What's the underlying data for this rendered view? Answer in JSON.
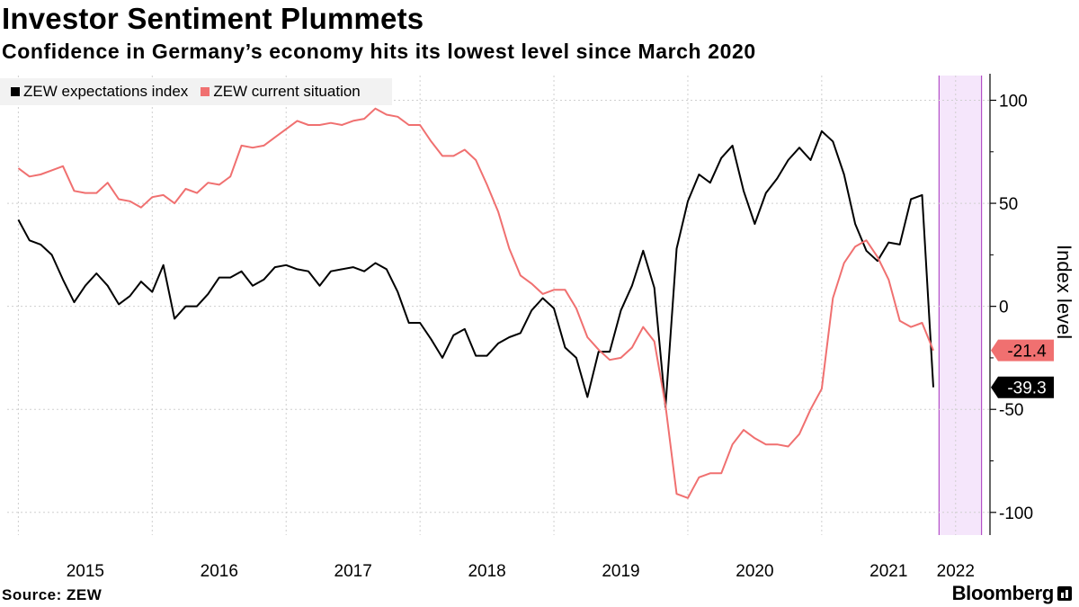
{
  "header": {
    "title": "Investor Sentiment Plummets",
    "subtitle": "Confidence in Germany’s economy hits its lowest level since March 2020"
  },
  "legend": [
    {
      "label": "ZEW expectations index",
      "color": "#000000"
    },
    {
      "label": "ZEW current situation",
      "color": "#f07070"
    }
  ],
  "footer": {
    "source": "Source: ZEW",
    "brand": "Bloomberg"
  },
  "chart_data": {
    "type": "line",
    "ylabel": "Index level",
    "ylim": [
      -111,
      112
    ],
    "yticks": [
      100,
      50,
      0,
      -50,
      -100
    ],
    "xlim": [
      "2014-12",
      "2022-04"
    ],
    "xticks": [
      {
        "label": "2015",
        "date": "2015-07"
      },
      {
        "label": "2016",
        "date": "2016-07"
      },
      {
        "label": "2017",
        "date": "2017-07"
      },
      {
        "label": "2018",
        "date": "2018-07"
      },
      {
        "label": "2019",
        "date": "2019-07"
      },
      {
        "label": "2020",
        "date": "2020-07"
      },
      {
        "label": "2021",
        "date": "2021-07"
      },
      {
        "label": "2022",
        "date": "2022-01"
      }
    ],
    "highlight": {
      "start": "2021-12",
      "end": "2022-03",
      "color": "#f5e6fb",
      "edge": "#b44fc8"
    },
    "grid": true,
    "legend_position": "top-left",
    "end_labels": [
      {
        "text": "-21.4",
        "series": 1,
        "value": -21.4
      },
      {
        "text": "-39.3",
        "series": 0,
        "value": -39.3
      }
    ],
    "series": [
      {
        "name": "ZEW expectations index",
        "color": "#000000",
        "start": "2015-01",
        "values": [
          42,
          32,
          30,
          25,
          13,
          2,
          10,
          16,
          10,
          1,
          5,
          12,
          7,
          20,
          -6,
          0,
          0,
          6,
          14,
          14,
          17,
          10,
          13,
          19,
          20,
          18,
          17,
          10,
          17,
          18,
          19,
          17,
          21,
          18,
          7,
          -8,
          -8,
          -16,
          -25,
          -14,
          -11,
          -24,
          -24,
          -18,
          -15,
          -13,
          -2,
          4,
          -1,
          -20,
          -25,
          -44,
          -22,
          -22,
          -2,
          10,
          27,
          9,
          -49,
          28,
          51,
          64,
          60,
          72,
          78,
          56,
          40,
          55,
          62,
          71,
          77,
          71,
          85,
          80,
          64,
          40,
          27,
          22,
          31,
          30,
          52,
          54,
          -39.3
        ]
      },
      {
        "name": "ZEW current situation",
        "color": "#f07070",
        "start": "2015-01",
        "values": [
          67,
          63,
          64,
          66,
          68,
          56,
          55,
          55,
          60,
          52,
          51,
          48,
          53,
          54,
          50,
          57,
          55,
          60,
          59,
          63,
          78,
          77,
          78,
          82,
          86,
          90,
          88,
          88,
          89,
          88,
          90,
          91,
          96,
          93,
          92,
          88,
          88,
          80,
          73,
          73,
          76,
          71,
          59,
          46,
          28,
          15,
          11,
          6,
          8,
          8,
          -1,
          -15,
          -21,
          -26,
          -25,
          -20,
          -10,
          -17,
          -48,
          -91,
          -93,
          -83,
          -81,
          -81,
          -67,
          -60,
          -64,
          -67,
          -67,
          -68,
          -62,
          -50,
          -40,
          4,
          21,
          29,
          32,
          24,
          13,
          -7,
          -10,
          -8,
          -21.4
        ]
      }
    ]
  }
}
